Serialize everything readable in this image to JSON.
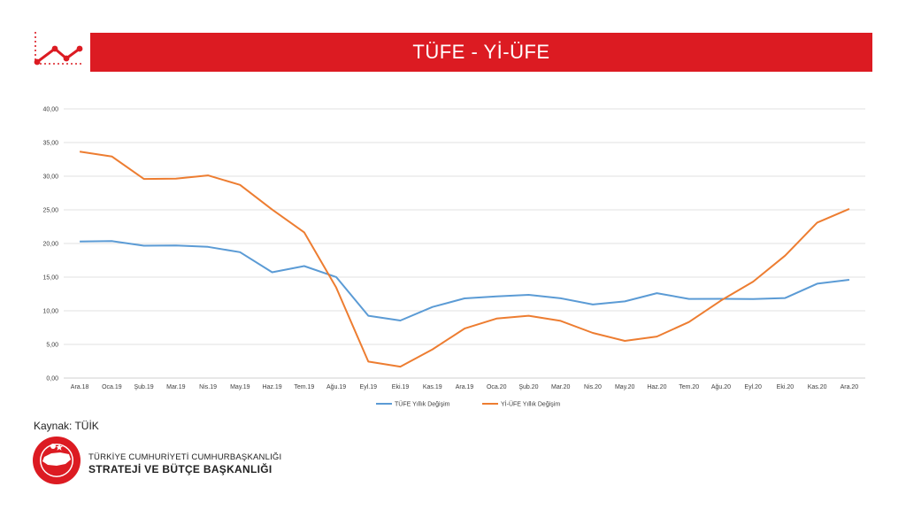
{
  "header": {
    "title": "TÜFE - Yİ-ÜFE"
  },
  "colors": {
    "accent": "#dc1b22",
    "series1": "#5b9bd5",
    "series2": "#ed7d31"
  },
  "source": "Kaynak: TÜİK",
  "org": {
    "line1": "TÜRKİYE CUMHURİYETİ CUMHURBAŞKANLIĞI",
    "line2": "STRATEJİ VE BÜTÇE BAŞKANLIĞI"
  },
  "chart_data": {
    "type": "line",
    "categories": [
      "Ara.18",
      "Oca.19",
      "Şub.19",
      "Mar.19",
      "Nis.19",
      "May.19",
      "Haz.19",
      "Tem.19",
      "Ağu.19",
      "Eyl.19",
      "Eki.19",
      "Kas.19",
      "Ara.19",
      "Oca.20",
      "Şub.20",
      "Mar.20",
      "Nis.20",
      "May.20",
      "Haz.20",
      "Tem.20",
      "Ağu.20",
      "Eyl.20",
      "Eki.20",
      "Kas.20",
      "Ara.20"
    ],
    "yticks": [
      "0,00",
      "5,00",
      "10,00",
      "15,00",
      "20,00",
      "25,00",
      "30,00",
      "35,00",
      "40,00"
    ],
    "ylim": [
      0,
      40
    ],
    "grid": true,
    "legend_position": "bottom",
    "series": [
      {
        "name": "TÜFE Yıllık Değişim",
        "color": "#5b9bd5",
        "values": [
          20.3,
          20.35,
          19.67,
          19.71,
          19.5,
          18.71,
          15.72,
          16.65,
          15.01,
          9.26,
          8.55,
          10.56,
          11.84,
          12.15,
          12.37,
          11.86,
          10.94,
          11.39,
          12.62,
          11.76,
          11.77,
          11.75,
          11.89,
          14.03,
          14.6
        ]
      },
      {
        "name": "Yİ-ÜFE Yıllık Değişim",
        "color": "#ed7d31",
        "values": [
          33.64,
          32.93,
          29.59,
          29.64,
          30.12,
          28.71,
          25.04,
          21.66,
          13.45,
          2.45,
          1.7,
          4.26,
          7.36,
          8.84,
          9.26,
          8.5,
          6.71,
          5.53,
          6.17,
          8.33,
          11.53,
          14.33,
          18.2,
          23.11,
          25.15
        ]
      }
    ]
  }
}
